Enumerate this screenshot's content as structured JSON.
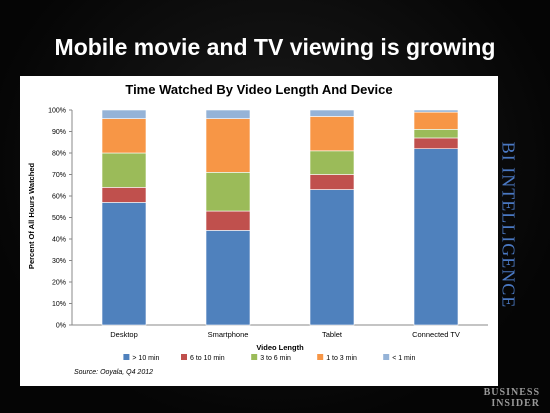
{
  "slide": {
    "title": "Mobile movie and TV viewing is growing",
    "brand_vertical": "BI INTELLIGENCE",
    "logo_line1": "BUSINESS",
    "logo_line2": "INSIDER",
    "background": "#000000"
  },
  "chart_data": {
    "type": "bar",
    "stacked": true,
    "title": "Time Watched By Video Length And Device",
    "xlabel": "Video Length",
    "ylabel": "Percent Of All Hours Watched",
    "ylim": [
      0,
      100
    ],
    "yticks": [
      "0%",
      "10%",
      "20%",
      "30%",
      "40%",
      "50%",
      "60%",
      "70%",
      "80%",
      "90%",
      "100%"
    ],
    "categories": [
      "Desktop",
      "Smartphone",
      "Tablet",
      "Connected TV"
    ],
    "series": [
      {
        "name": "> 10 min",
        "color": "#4f81bd",
        "values": [
          57,
          44,
          63,
          82
        ]
      },
      {
        "name": "6 to 10 min",
        "color": "#c0504d",
        "values": [
          7,
          9,
          7,
          5
        ]
      },
      {
        "name": "3 to 6 min",
        "color": "#9bbb59",
        "values": [
          16,
          18,
          11,
          4
        ]
      },
      {
        "name": "1 to 3 min",
        "color": "#f79646",
        "values": [
          16,
          25,
          16,
          8
        ]
      },
      {
        "name": "< 1 min",
        "color": "#95b3d7",
        "values": [
          4,
          4,
          3,
          1
        ]
      }
    ],
    "legend_position": "bottom",
    "grid": false,
    "source": "Source: Ooyala, Q4 2012"
  }
}
